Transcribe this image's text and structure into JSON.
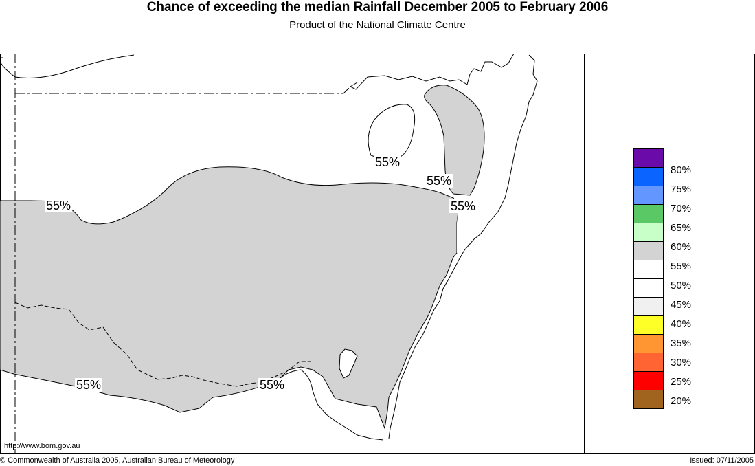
{
  "title": "Chance of exceeding the median Rainfall December 2005 to February 2006",
  "subtitle": "Product of the National Climate Centre",
  "footer": {
    "url": "http://www.bom.gov.au",
    "copyright": "© Commonwealth of Australia 2005, Australian Bureau of Meteorology",
    "issued": "Issued: 07/11/2005"
  },
  "legend": {
    "colors": [
      "#6a0aa8",
      "#0a64ff",
      "#6496ff",
      "#5ac864",
      "#c8ffc8",
      "#d3d3d3",
      "#ffffff",
      "#ffffff",
      "#f0f0f0",
      "#ffff28",
      "#ff9632",
      "#ff6432",
      "#ff0000",
      "#a0641e"
    ],
    "labels": [
      "80%",
      "75%",
      "70%",
      "65%",
      "60%",
      "55%",
      "50%",
      "45%",
      "40%",
      "35%",
      "30%",
      "25%",
      "20%"
    ]
  },
  "map": {
    "shaded_color": "#d3d3d3",
    "contour_labels": [
      "55%",
      "55%",
      "55%",
      "55%",
      "55%",
      "55%"
    ]
  }
}
